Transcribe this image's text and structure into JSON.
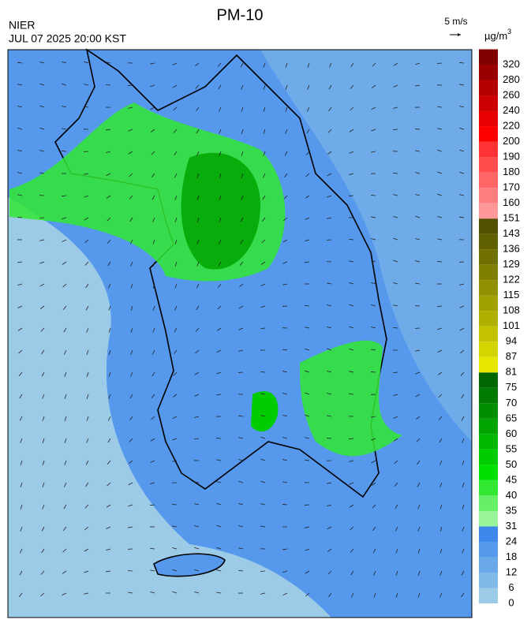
{
  "header": {
    "title": "PM-10",
    "agency": "NIER",
    "timestamp": "JUL 07 2025 20:00 KST"
  },
  "wind_scale": {
    "label": "5 m/s"
  },
  "legend": {
    "unit": "µg/m",
    "unit_exponent": "3",
    "levels": [
      0,
      6,
      12,
      18,
      24,
      31,
      35,
      40,
      45,
      50,
      55,
      60,
      65,
      70,
      75,
      81,
      87,
      94,
      101,
      108,
      115,
      122,
      129,
      136,
      143,
      151,
      160,
      170,
      180,
      190,
      200,
      220,
      240,
      260,
      280,
      320
    ],
    "colors": [
      "#9ccbe8",
      "#80b8e8",
      "#6aa8ea",
      "#5598ec",
      "#3d87ea",
      "#99f599",
      "#66f066",
      "#33e833",
      "#00e000",
      "#00cc00",
      "#00b800",
      "#00a300",
      "#008f00",
      "#007a00",
      "#006600",
      "#e6e600",
      "#d4d400",
      "#c2c200",
      "#b0b000",
      "#a0a000",
      "#909000",
      "#808000",
      "#707000",
      "#606000",
      "#505000",
      "#ff9999",
      "#ff7f7f",
      "#ff6666",
      "#ff4d4d",
      "#ff3333",
      "#ff0000",
      "#e60000",
      "#cc0000",
      "#b30000",
      "#990000",
      "#800000"
    ]
  }
}
